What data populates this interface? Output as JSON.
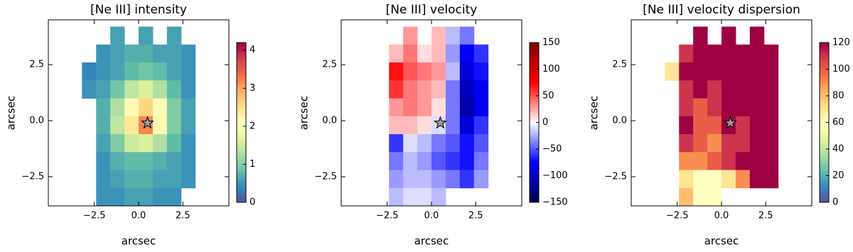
{
  "chart_data": [
    {
      "type": "heatmap",
      "title": "[Ne III] intensity",
      "xlabel": "arcsec",
      "ylabel": "arcsec",
      "colormap": "Spectral_r",
      "x": [
        -3.6,
        -2.8,
        -2.0,
        -1.2,
        -0.4,
        0.4,
        1.2,
        2.0,
        2.8,
        3.6
      ],
      "y": [
        3.8,
        3.0,
        2.2,
        1.4,
        0.6,
        -0.2,
        -1.0,
        -1.8,
        -2.6,
        -3.4
      ],
      "values": [
        [
          null,
          null,
          null,
          0.6,
          null,
          0.6,
          null,
          0.6,
          null,
          null
        ],
        [
          null,
          null,
          0.5,
          0.6,
          0.7,
          0.7,
          0.6,
          0.6,
          0.5,
          null
        ],
        [
          null,
          0.4,
          0.5,
          0.6,
          0.8,
          0.9,
          0.8,
          0.6,
          0.5,
          null
        ],
        [
          null,
          0.5,
          0.6,
          0.9,
          1.4,
          1.6,
          1.3,
          0.8,
          0.5,
          null
        ],
        [
          null,
          null,
          0.7,
          1.3,
          2.2,
          2.6,
          2.0,
          1.0,
          0.6,
          null
        ],
        [
          null,
          null,
          0.7,
          1.4,
          2.4,
          3.2,
          2.2,
          1.0,
          0.6,
          null
        ],
        [
          null,
          null,
          0.6,
          1.0,
          1.5,
          1.6,
          1.3,
          0.8,
          0.5,
          null
        ],
        [
          null,
          null,
          0.5,
          0.7,
          0.8,
          0.8,
          0.7,
          0.6,
          0.5,
          null
        ],
        [
          null,
          null,
          0.5,
          0.6,
          0.7,
          0.7,
          0.6,
          0.6,
          0.5,
          null
        ],
        [
          null,
          null,
          0.5,
          0.5,
          0.6,
          0.6,
          0.5,
          0.5,
          null,
          null
        ]
      ],
      "star": [
        0.5,
        -0.1
      ],
      "xlim": [
        -5.1,
        5.1
      ],
      "ylim": [
        -3.8,
        4.5
      ],
      "xticks": [
        {
          "value": -2.5,
          "label": "−2.5"
        },
        {
          "value": 0,
          "label": "0.0"
        },
        {
          "value": 2.5,
          "label": "2.5"
        }
      ],
      "yticks": [
        {
          "value": -2.5,
          "label": "−2.5"
        },
        {
          "value": 0,
          "label": "0.0"
        },
        {
          "value": 2.5,
          "label": "2.5"
        }
      ],
      "clim": [
        0,
        4.2
      ],
      "cticks": [
        0,
        1,
        2,
        3,
        4
      ]
    },
    {
      "type": "heatmap",
      "title": "[Ne III] velocity",
      "xlabel": "arcsec",
      "ylabel": "arcsec",
      "colormap": "seismic",
      "x": [
        -3.6,
        -2.8,
        -2.0,
        -1.2,
        -0.4,
        0.4,
        1.2,
        2.0,
        2.8,
        3.6
      ],
      "y": [
        3.8,
        3.0,
        2.2,
        1.4,
        0.6,
        -0.2,
        -1.0,
        -1.8,
        -2.6,
        -3.4
      ],
      "values": [
        [
          null,
          null,
          null,
          30,
          null,
          20,
          -20,
          -40,
          null,
          null
        ],
        [
          null,
          null,
          20,
          40,
          10,
          20,
          -30,
          -80,
          -60,
          null
        ],
        [
          null,
          null,
          70,
          50,
          40,
          30,
          -20,
          -90,
          -70,
          null
        ],
        [
          null,
          null,
          60,
          40,
          30,
          20,
          -40,
          -100,
          -80,
          null
        ],
        [
          null,
          null,
          30,
          40,
          30,
          10,
          -40,
          -110,
          -80,
          null
        ],
        [
          null,
          null,
          20,
          20,
          10,
          -10,
          -40,
          -90,
          -60,
          null
        ],
        [
          null,
          null,
          -60,
          -10,
          -20,
          -40,
          -50,
          -70,
          -50,
          null
        ],
        [
          null,
          null,
          -40,
          -20,
          -30,
          -50,
          -60,
          -70,
          -40,
          null
        ],
        [
          null,
          null,
          -30,
          -20,
          -20,
          -30,
          -40,
          -60,
          -30,
          null
        ],
        [
          null,
          null,
          -20,
          -10,
          -10,
          -20,
          null,
          null,
          null,
          null
        ]
      ],
      "star": [
        0.5,
        -0.1
      ],
      "xlim": [
        -5.1,
        5.1
      ],
      "ylim": [
        -3.8,
        4.5
      ],
      "xticks": [
        {
          "value": -2.5,
          "label": "−2.5"
        },
        {
          "value": 0,
          "label": "0.0"
        },
        {
          "value": 2.5,
          "label": "2.5"
        }
      ],
      "yticks": [
        {
          "value": -2.5,
          "label": "−2.5"
        },
        {
          "value": 0,
          "label": "0.0"
        },
        {
          "value": 2.5,
          "label": "2.5"
        }
      ],
      "clim": [
        -150,
        150
      ],
      "cticks": [
        {
          "value": -150,
          "label": "−150"
        },
        {
          "value": -100,
          "label": "−100"
        },
        {
          "value": -50,
          "label": "−50"
        },
        0,
        50,
        100,
        150
      ]
    },
    {
      "type": "heatmap",
      "title": "[Ne III] velocity dispersion",
      "xlabel": "arcsec",
      "ylabel": "arcsec",
      "colormap": "Spectral_r",
      "x": [
        -3.6,
        -2.8,
        -2.0,
        -1.2,
        -0.4,
        0.4,
        1.2,
        2.0,
        2.8,
        3.6
      ],
      "y": [
        3.8,
        3.0,
        2.2,
        1.4,
        0.6,
        -0.2,
        -1.0,
        -1.8,
        -2.6,
        -3.4
      ],
      "values": [
        [
          null,
          null,
          null,
          120,
          null,
          120,
          null,
          120,
          null,
          null
        ],
        [
          null,
          null,
          110,
          120,
          120,
          120,
          120,
          120,
          120,
          null
        ],
        [
          null,
          70,
          120,
          120,
          120,
          120,
          120,
          120,
          120,
          null
        ],
        [
          null,
          null,
          110,
          120,
          110,
          120,
          120,
          120,
          120,
          null
        ],
        [
          null,
          null,
          110,
          100,
          110,
          120,
          120,
          120,
          120,
          null
        ],
        [
          null,
          null,
          120,
          100,
          100,
          120,
          110,
          120,
          120,
          null
        ],
        [
          null,
          null,
          110,
          100,
          90,
          110,
          110,
          120,
          120,
          null
        ],
        [
          null,
          null,
          90,
          90,
          100,
          110,
          120,
          120,
          120,
          null
        ],
        [
          null,
          null,
          70,
          60,
          60,
          70,
          90,
          120,
          120,
          null
        ],
        [
          null,
          null,
          80,
          60,
          60,
          null,
          null,
          null,
          null,
          null
        ]
      ],
      "star": [
        0.5,
        -0.1
      ],
      "xlim": [
        -5.1,
        5.1
      ],
      "ylim": [
        -3.8,
        4.5
      ],
      "xticks": [
        {
          "value": -2.5,
          "label": "−2.5"
        },
        {
          "value": 0,
          "label": "0.0"
        },
        {
          "value": 2.5,
          "label": "2.5"
        }
      ],
      "yticks": [
        {
          "value": -2.5,
          "label": "−2.5"
        },
        {
          "value": 0,
          "label": "0.0"
        },
        {
          "value": 2.5,
          "label": "2.5"
        }
      ],
      "clim": [
        0,
        120
      ],
      "cticks": [
        0,
        20,
        40,
        60,
        80,
        100,
        120
      ]
    }
  ]
}
